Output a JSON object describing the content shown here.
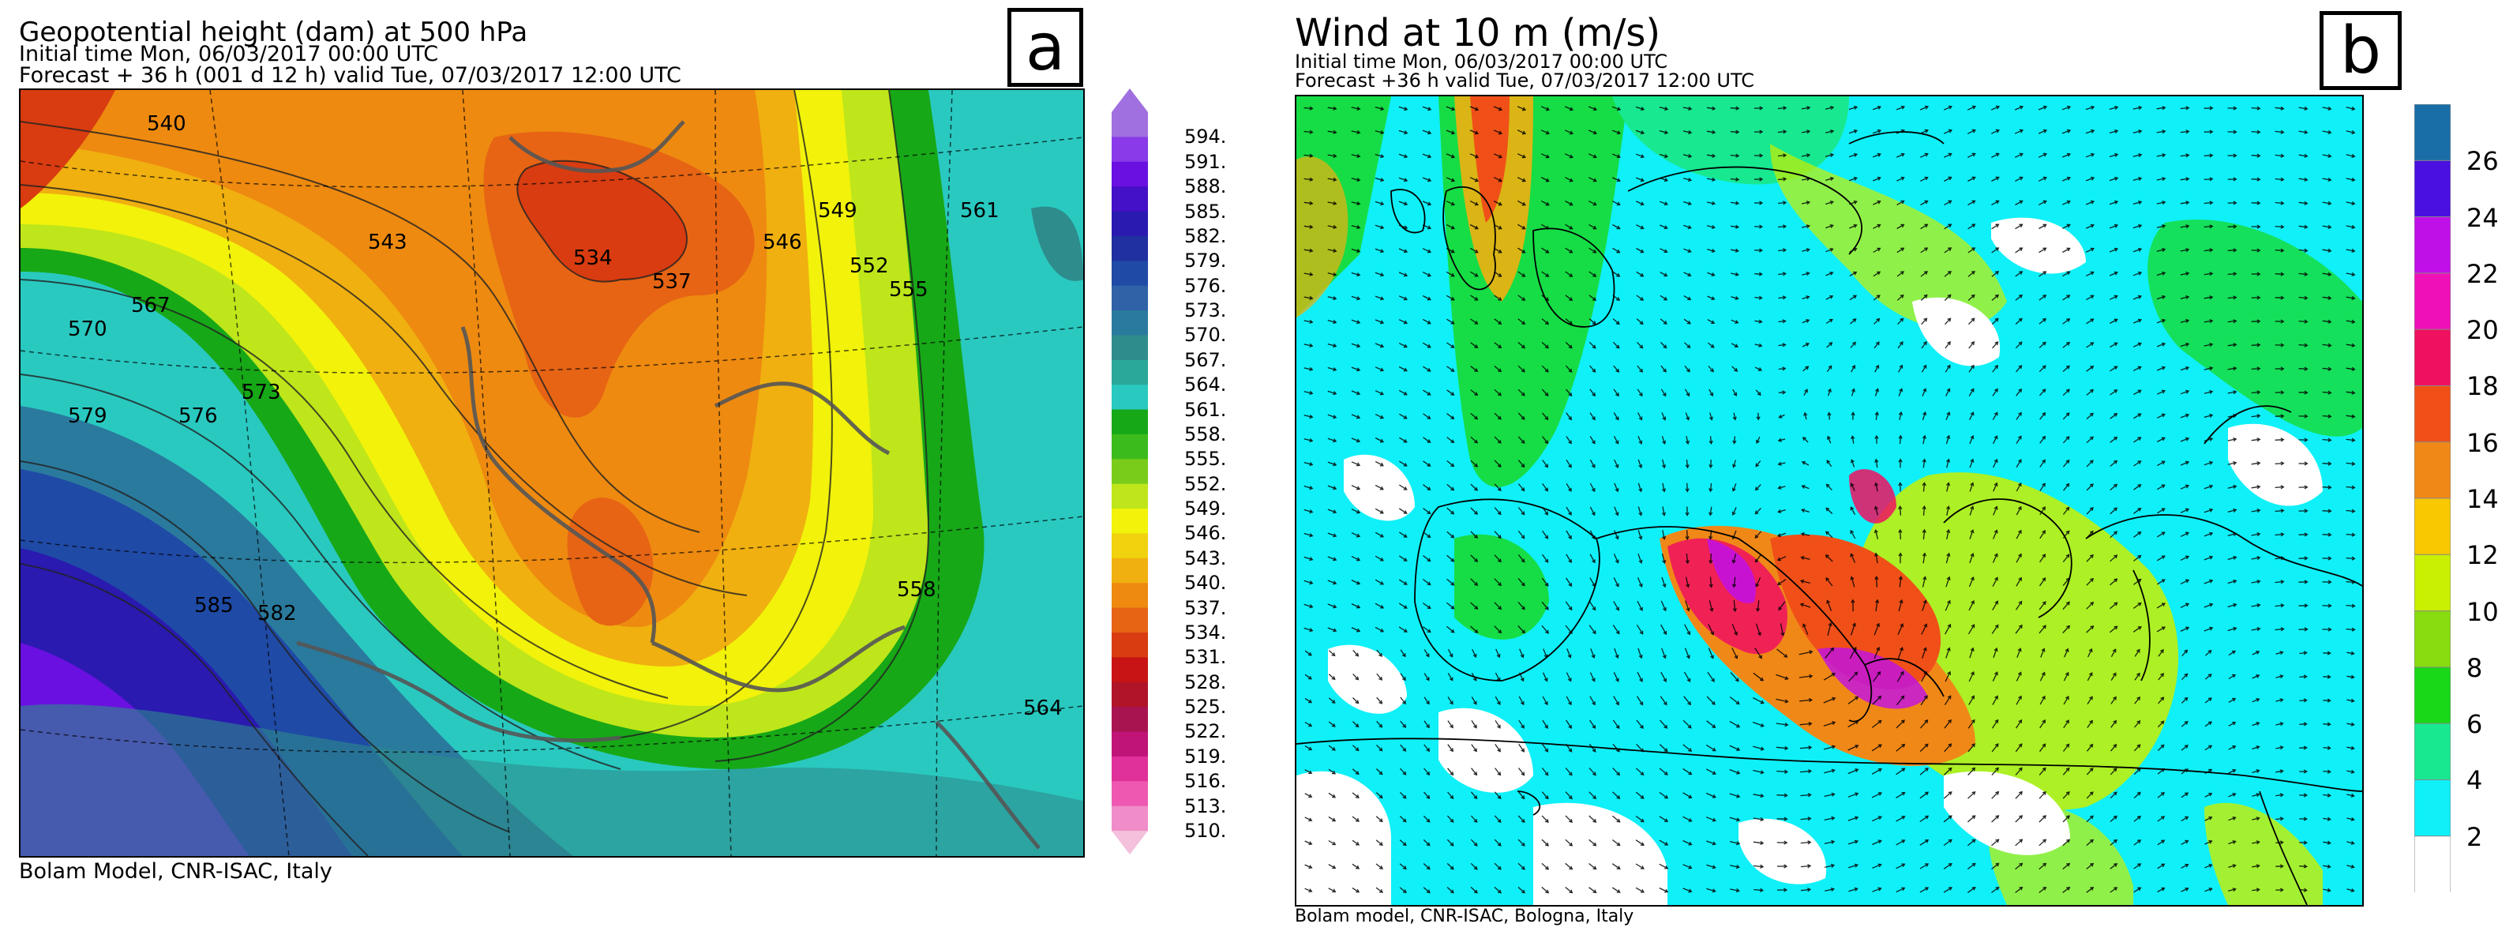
{
  "panel_a": {
    "title": "Geopotential height (dam) at 500 hPa",
    "initial_time": "Initial time  Mon, 06/03/2017  00:00 UTC",
    "forecast": "Forecast  +  36 h  (001 d 12 h)  valid Tue, 07/03/2017 12:00 UTC",
    "footer": "Bolam Model, CNR-ISAC, Italy",
    "label": "a",
    "colorbar": {
      "labels": [
        "594.",
        "591.",
        "588.",
        "585.",
        "582.",
        "579.",
        "576.",
        "573.",
        "570.",
        "567.",
        "564.",
        "561.",
        "558.",
        "555.",
        "552.",
        "549.",
        "546.",
        "543.",
        "540.",
        "537.",
        "534.",
        "531.",
        "528.",
        "525.",
        "522.",
        "519.",
        "516.",
        "513.",
        "510."
      ],
      "colors": [
        "#a070e0",
        "#8a3ae8",
        "#6a10e0",
        "#4410c8",
        "#2a1ab0",
        "#2030a0",
        "#1f4aa6",
        "#2f62a6",
        "#2a7a9e",
        "#2e8c8c",
        "#2aa898",
        "#29c9c0",
        "#17a817",
        "#3cbc1c",
        "#7acc1a",
        "#bee61a",
        "#f2f20a",
        "#f0d20e",
        "#f0b010",
        "#ee8a10",
        "#e66414",
        "#d83c10",
        "#c81414",
        "#b01428",
        "#a81450",
        "#c01478",
        "#e0309a",
        "#ee58b0",
        "#f08cc8"
      ]
    },
    "contour_labels": [
      "540",
      "543",
      "546",
      "549",
      "552",
      "555",
      "558",
      "561",
      "564",
      "567",
      "570",
      "573",
      "576",
      "579",
      "582",
      "585",
      "534",
      "537",
      "534"
    ]
  },
  "panel_b": {
    "title": "Wind at 10 m (m/s)",
    "initial_time": "Initial time  Mon, 06/03/2017 00:00 UTC",
    "forecast": "Forecast +36 h valid  Tue, 07/03/2017 12:00 UTC",
    "footer": "Bolam model, CNR-ISAC, Bologna, Italy",
    "label": "b",
    "colorbar": {
      "labels": [
        "26",
        "24",
        "22",
        "20",
        "18",
        "16",
        "14",
        "12",
        "10",
        "8",
        "6",
        "4",
        "2"
      ],
      "colors": [
        "#1a6ea8",
        "#4a10e0",
        "#c010e8",
        "#f010b8",
        "#f01060",
        "#f05018",
        "#f08818",
        "#f8c800",
        "#c8f000",
        "#88dc10",
        "#18d818",
        "#18e890",
        "#10f0f8",
        "#ffffff"
      ]
    }
  }
}
